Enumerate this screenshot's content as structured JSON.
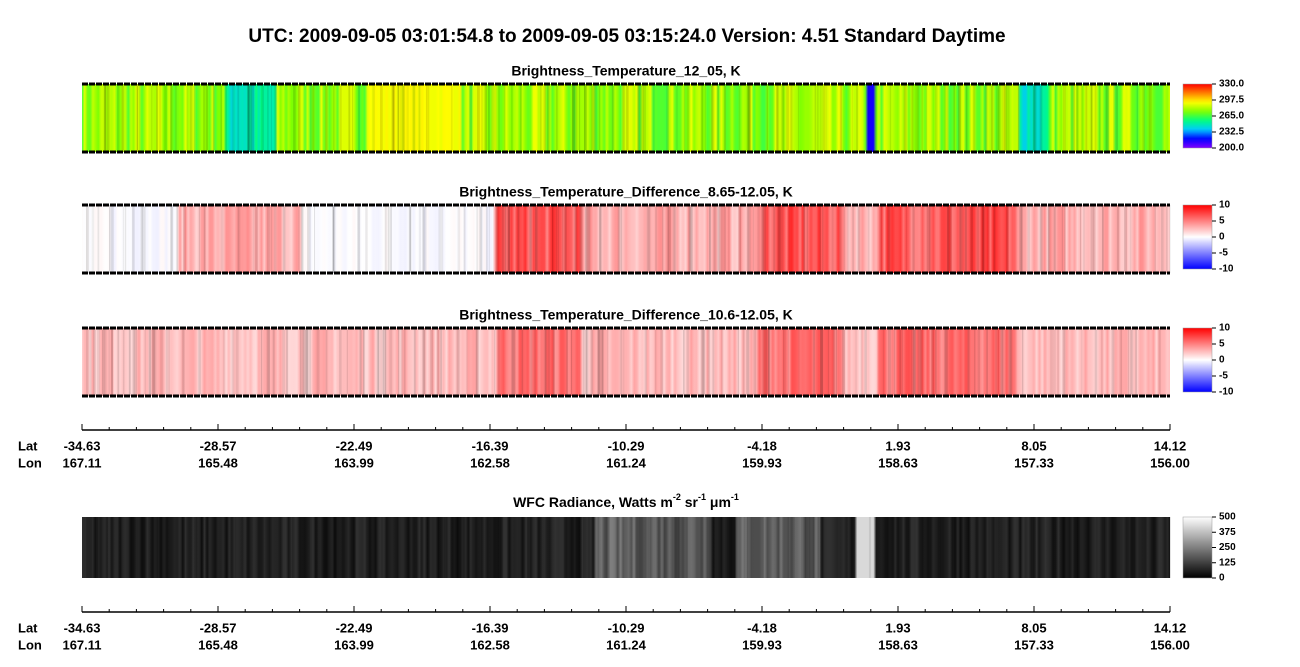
{
  "header": {
    "title": "UTC:  2009-09-05   03:01:54.8  to  2009-09-05   03:15:24.0    Version: 4.51  Standard Daytime"
  },
  "panels": [
    {
      "title": "Brightness_Temperature_12_05, K",
      "colorbar_labels": [
        "330.0",
        "297.5",
        "265.0",
        "232.5",
        "200.0"
      ]
    },
    {
      "title": "Brightness_Temperature_Difference_8.65-12.05, K",
      "colorbar_labels": [
        "10",
        "5",
        "0",
        "-5",
        "-10"
      ]
    },
    {
      "title": "Brightness_Temperature_Difference_10.6-12.05, K",
      "colorbar_labels": [
        "10",
        "5",
        "0",
        "-5",
        "-10"
      ]
    }
  ],
  "axis_top": {
    "lat_label": "Lat",
    "lon_label": "Lon",
    "lat": [
      "-34.63",
      "-28.57",
      "-22.49",
      "-16.39",
      "-10.29",
      "-4.18",
      "1.93",
      "8.05",
      "14.12"
    ],
    "lon": [
      "167.11",
      "165.48",
      "163.99",
      "162.58",
      "161.24",
      "159.93",
      "158.63",
      "157.33",
      "156.00"
    ]
  },
  "wfc_panel": {
    "title_parts": [
      "WFC Radiance, Watts m",
      "-2",
      " sr",
      "-1",
      " μm",
      "-1"
    ],
    "colorbar_labels": [
      "500",
      "375",
      "250",
      "125",
      "0"
    ]
  },
  "axis_bottom": {
    "lat_label": "Lat",
    "lon_label": "Lon",
    "lat": [
      "-34.63",
      "-28.57",
      "-22.49",
      "-16.39",
      "-10.29",
      "-4.18",
      "1.93",
      "8.05",
      "14.12"
    ],
    "lon": [
      "167.11",
      "165.48",
      "163.99",
      "162.58",
      "161.24",
      "159.93",
      "158.63",
      "157.33",
      "156.00"
    ]
  }
}
